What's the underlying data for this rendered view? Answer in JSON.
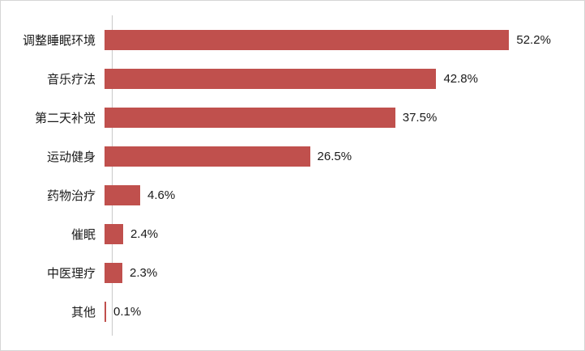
{
  "chart": {
    "bar_color": "#c0504d",
    "axis_color": "#c9c9c9",
    "background": "#ffffff",
    "border_color": "#d6d6d6"
  },
  "chart_data": {
    "type": "bar",
    "orientation": "horizontal",
    "title": "",
    "xlabel": "",
    "ylabel": "",
    "categories": [
      "调整睡眠环境",
      "音乐疗法",
      "第二天补觉",
      "运动健身",
      "药物治疗",
      "催眠",
      "中医理疗",
      "其他"
    ],
    "values": [
      52.2,
      42.8,
      37.5,
      26.5,
      4.6,
      2.4,
      2.3,
      0.1
    ],
    "value_labels": [
      "52.2%",
      "42.8%",
      "37.5%",
      "26.5%",
      "4.6%",
      "2.4%",
      "2.3%",
      "0.1%"
    ],
    "xlim": [
      0,
      60
    ],
    "grid": false,
    "legend": false
  }
}
